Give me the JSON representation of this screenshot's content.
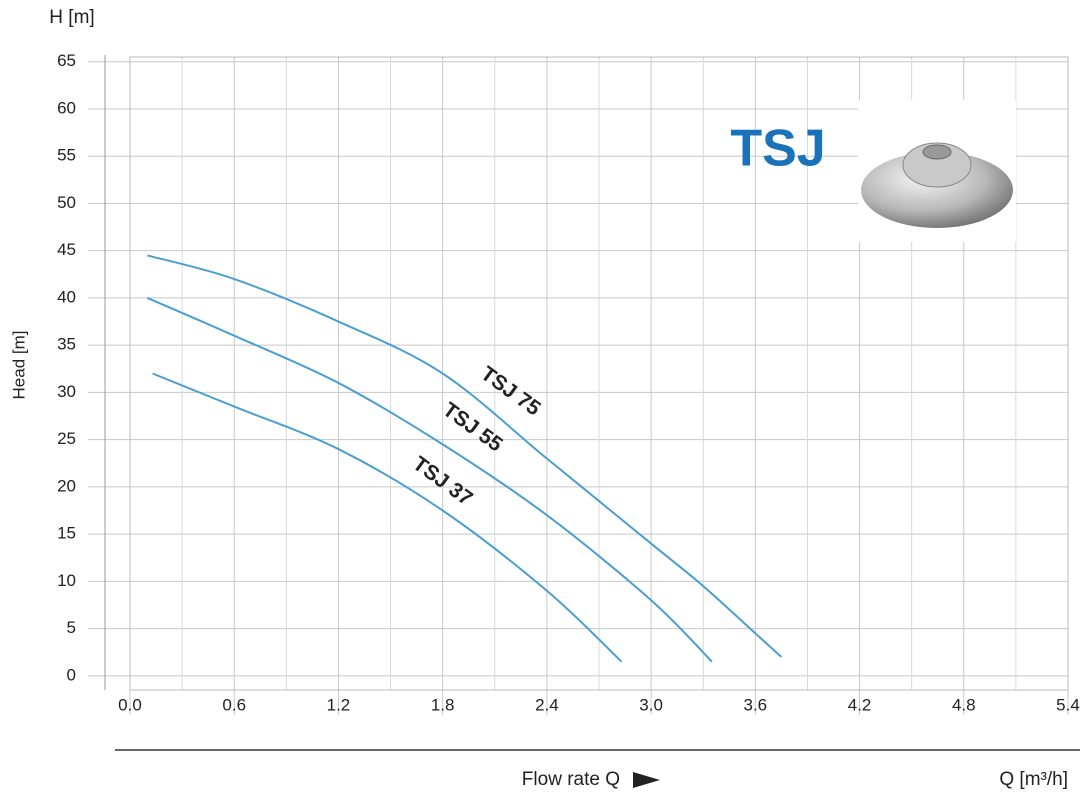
{
  "chart_data": {
    "type": "line",
    "title": "TSJ",
    "y_axis_title": "H [m]",
    "y_axis_label": "Head [m]",
    "x_axis_label": "Flow rate Q",
    "x_axis_unit": "Q [m³/h]",
    "xlim": [
      0,
      5.4
    ],
    "xticks": [
      {
        "value": 0,
        "label": "0.0"
      },
      0.6,
      1.2,
      1.8,
      2.4,
      {
        "value": 3,
        "label": "3.0"
      },
      3.6,
      4.2,
      4.8,
      5.4
    ],
    "xminorticks": [
      0.3,
      0.9,
      1.5,
      2.1,
      2.7,
      3.3,
      3.9,
      4.5,
      5.1
    ],
    "ylim": [
      -1.5,
      65.5
    ],
    "yticks": [
      0,
      5,
      10,
      15,
      20,
      25,
      30,
      35,
      40,
      45,
      50,
      55,
      60,
      65
    ],
    "grid": true,
    "series": [
      {
        "name": "TSJ 75",
        "color": "#4a9fd0",
        "x": [
          0.1,
          0.6,
          1.2,
          1.8,
          2.4,
          3.0,
          3.3,
          3.6,
          3.75
        ],
        "values": [
          44.5,
          42,
          37.5,
          32,
          23,
          14,
          9.5,
          4.5,
          2
        ]
      },
      {
        "name": "TSJ 55",
        "color": "#4a9fd0",
        "x": [
          0.1,
          0.6,
          1.2,
          1.8,
          2.4,
          3.0,
          3.35
        ],
        "values": [
          40,
          36,
          31,
          24.5,
          17,
          8,
          1.5
        ]
      },
      {
        "name": "TSJ 37",
        "color": "#4a9fd0",
        "x": [
          0.13,
          0.6,
          1.2,
          1.8,
          2.4,
          2.83
        ],
        "values": [
          32,
          28.5,
          24,
          17.5,
          9,
          1.5
        ]
      }
    ]
  }
}
